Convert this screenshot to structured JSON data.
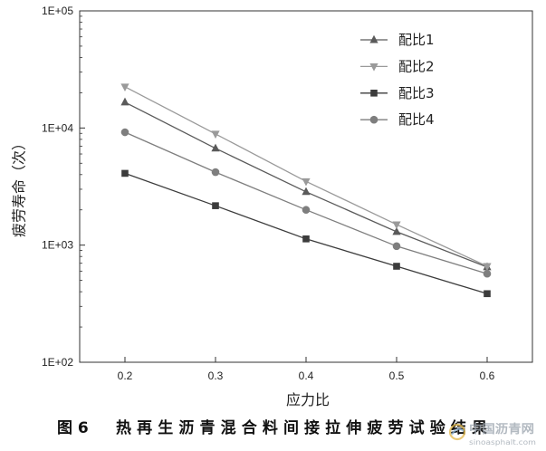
{
  "chart_data": {
    "type": "line",
    "xlabel": "应力比",
    "ylabel": "疲劳寿命（次）",
    "x": [
      0.2,
      0.3,
      0.4,
      0.5,
      0.6
    ],
    "x_tick_labels": [
      "0.2",
      "0.3",
      "0.4",
      "0.5",
      "0.6"
    ],
    "xlim": [
      0.15,
      0.65
    ],
    "yscale": "log",
    "ylim": [
      100,
      100000
    ],
    "y_ticks": [
      100,
      1000,
      10000,
      100000
    ],
    "y_tick_labels": [
      "1E+02",
      "1E+03",
      "1E+04",
      "1E+05"
    ],
    "grid": false,
    "legend_position": "top-right",
    "series": [
      {
        "name": "配比1",
        "marker": "triangle-up",
        "color": "#5a5a5a",
        "values": [
          16600,
          6700,
          2850,
          1300,
          650
        ]
      },
      {
        "name": "配比2",
        "marker": "triangle-down",
        "color": "#9a9a9a",
        "values": [
          22500,
          8900,
          3500,
          1500,
          660
        ]
      },
      {
        "name": "配比3",
        "marker": "square",
        "color": "#3c3c3c",
        "values": [
          4100,
          2170,
          1130,
          660,
          385
        ]
      },
      {
        "name": "配比4",
        "marker": "circle",
        "color": "#7e7e7e",
        "values": [
          9200,
          4200,
          2000,
          980,
          570
        ]
      }
    ]
  },
  "caption": {
    "label": "图 6",
    "text": "热再生沥青混合料间接拉伸疲劳试验结果"
  },
  "watermark": {
    "name": "中国沥青网",
    "url": "sinoasphalt.com"
  }
}
